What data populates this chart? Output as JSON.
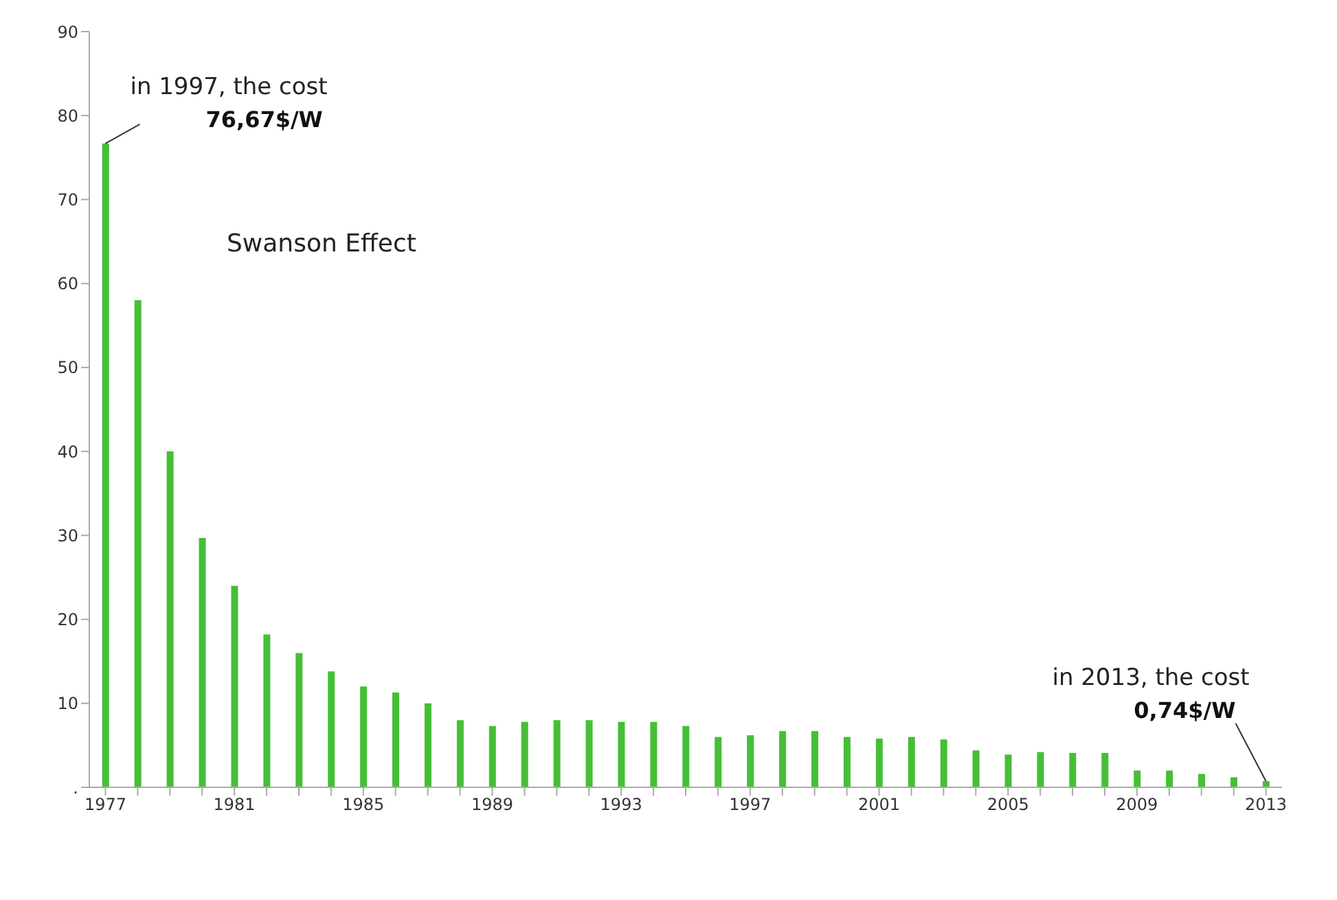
{
  "chart_data": {
    "type": "bar",
    "categories": [
      "1977",
      null,
      null,
      null,
      "1981",
      null,
      null,
      null,
      "1985",
      null,
      null,
      null,
      "1989",
      null,
      null,
      null,
      "1993",
      null,
      null,
      null,
      "1997",
      null,
      null,
      null,
      "2001",
      null,
      null,
      null,
      "2005",
      null,
      null,
      null,
      "2009",
      null,
      null,
      null,
      "2013"
    ],
    "values": [
      76.67,
      58,
      40,
      29.7,
      24,
      18.2,
      16,
      13.8,
      12,
      11.3,
      10,
      8,
      7.3,
      7.8,
      8,
      8,
      7.8,
      7.8,
      7.3,
      6,
      6.2,
      6.7,
      6.7,
      6,
      5.8,
      6,
      5.7,
      4.4,
      3.9,
      4.2,
      4.1,
      4.1,
      2,
      2,
      1.6,
      1.2,
      0.74
    ],
    "color": "#45bf35",
    "ylim": [
      0,
      90
    ],
    "yticks": [
      {
        "value": 0,
        "label": "."
      },
      10,
      20,
      30,
      40,
      50,
      60,
      70,
      80,
      90
    ],
    "grid": false,
    "legend": false,
    "annotations": [
      {
        "text": "in 1997, the cost 76,67$/W",
        "x": "1977",
        "y": 76.67
      },
      "Swanson Effect",
      {
        "text": "in 2013, the cost 0,74$/W",
        "x": "2013",
        "y": 0.74
      }
    ]
  }
}
